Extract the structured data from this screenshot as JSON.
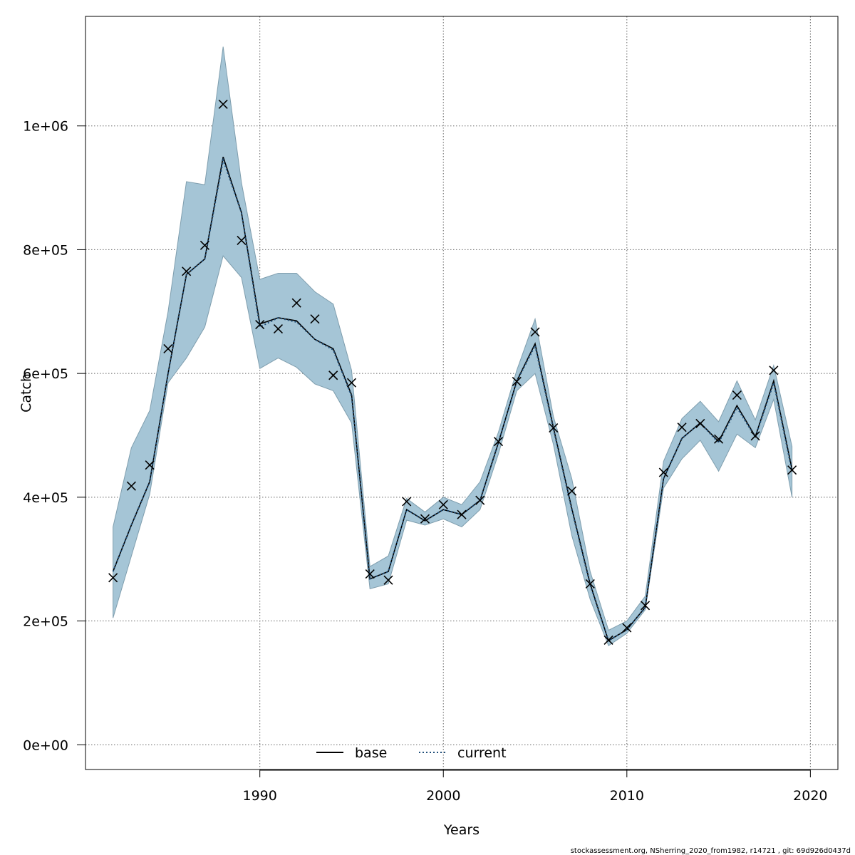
{
  "chart_data": {
    "type": "line",
    "title": "",
    "xlabel": "Years",
    "ylabel": "Catch",
    "xlim": [
      1980.5,
      2021.5
    ],
    "ylim": [
      -40000,
      1177000
    ],
    "x_ticks": [
      1990,
      2000,
      2010,
      2020
    ],
    "x_tick_labels": [
      "1990",
      "2000",
      "2010",
      "2020"
    ],
    "y_ticks": [
      0,
      200000,
      400000,
      600000,
      800000,
      1000000
    ],
    "y_tick_labels": [
      "0e+00",
      "2e+05",
      "4e+05",
      "6e+05",
      "8e+05",
      "1e+06"
    ],
    "grid": true,
    "legend_position": "bottom-center",
    "colors": {
      "band_fill": "#a5c5d6",
      "band_edge": "#7f9eae",
      "base_line": "#000000",
      "current_line": "#1f4e79",
      "grid": "#666666"
    },
    "x": [
      1982,
      1983,
      1984,
      1985,
      1986,
      1987,
      1988,
      1989,
      1990,
      1991,
      1992,
      1993,
      1994,
      1995,
      1996,
      1997,
      1998,
      1999,
      2000,
      2001,
      2002,
      2003,
      2004,
      2005,
      2006,
      2007,
      2008,
      2009,
      2010,
      2011,
      2012,
      2013,
      2014,
      2015,
      2016,
      2017,
      2018,
      2019
    ],
    "series": [
      {
        "name": "base",
        "style": "solid",
        "values": [
          280000,
          355000,
          425000,
          600000,
          760000,
          785000,
          950000,
          860000,
          680000,
          690000,
          685000,
          655000,
          640000,
          565000,
          268000,
          280000,
          380000,
          362000,
          380000,
          372000,
          395000,
          488000,
          588000,
          648000,
          512000,
          382000,
          260000,
          168000,
          186000,
          222000,
          430000,
          495000,
          520000,
          490000,
          548000,
          498000,
          588000,
          445000
        ]
      },
      {
        "name": "current",
        "style": "dotted",
        "values": [
          280000,
          355000,
          425000,
          600000,
          760000,
          785000,
          945000,
          860000,
          675000,
          690000,
          683000,
          655000,
          638000,
          563000,
          268000,
          280000,
          380000,
          362000,
          380000,
          372000,
          395000,
          488000,
          587000,
          645000,
          510000,
          380000,
          258000,
          168000,
          186000,
          222000,
          430000,
          495000,
          520000,
          488000,
          545000,
          497000,
          585000,
          442000
        ]
      },
      {
        "name": "band_lower",
        "values": [
          205000,
          305000,
          405000,
          585000,
          625000,
          675000,
          790000,
          755000,
          608000,
          625000,
          610000,
          583000,
          572000,
          520000,
          252000,
          260000,
          363000,
          355000,
          365000,
          352000,
          380000,
          470000,
          572000,
          600000,
          485000,
          338000,
          235000,
          160000,
          180000,
          218000,
          415000,
          462000,
          492000,
          442000,
          502000,
          480000,
          558000,
          400000
        ]
      },
      {
        "name": "band_upper",
        "values": [
          352000,
          480000,
          540000,
          700000,
          910000,
          905000,
          1128000,
          908000,
          752000,
          762000,
          762000,
          732000,
          712000,
          605000,
          288000,
          305000,
          398000,
          376000,
          400000,
          388000,
          425000,
          505000,
          605000,
          688000,
          530000,
          430000,
          280000,
          185000,
          200000,
          240000,
          458000,
          527000,
          555000,
          522000,
          588000,
          525000,
          613000,
          482000
        ]
      },
      {
        "name": "observed",
        "marker": "x",
        "values": [
          270000,
          418000,
          452000,
          640000,
          765000,
          807000,
          1035000,
          815000,
          679000,
          672000,
          714000,
          688000,
          597000,
          585000,
          276000,
          266000,
          393000,
          365000,
          388000,
          372000,
          395000,
          490000,
          587000,
          667000,
          512000,
          410000,
          260000,
          169000,
          189000,
          225000,
          440000,
          513000,
          519000,
          494000,
          565000,
          499000,
          605000,
          444000
        ]
      }
    ],
    "legend": [
      {
        "label": "base",
        "style": "solid"
      },
      {
        "label": "current",
        "style": "dotted"
      }
    ],
    "footnote": "stockassessment.org, NSherring_2020_from1982, r14721 , git: 69d926d0437d"
  }
}
